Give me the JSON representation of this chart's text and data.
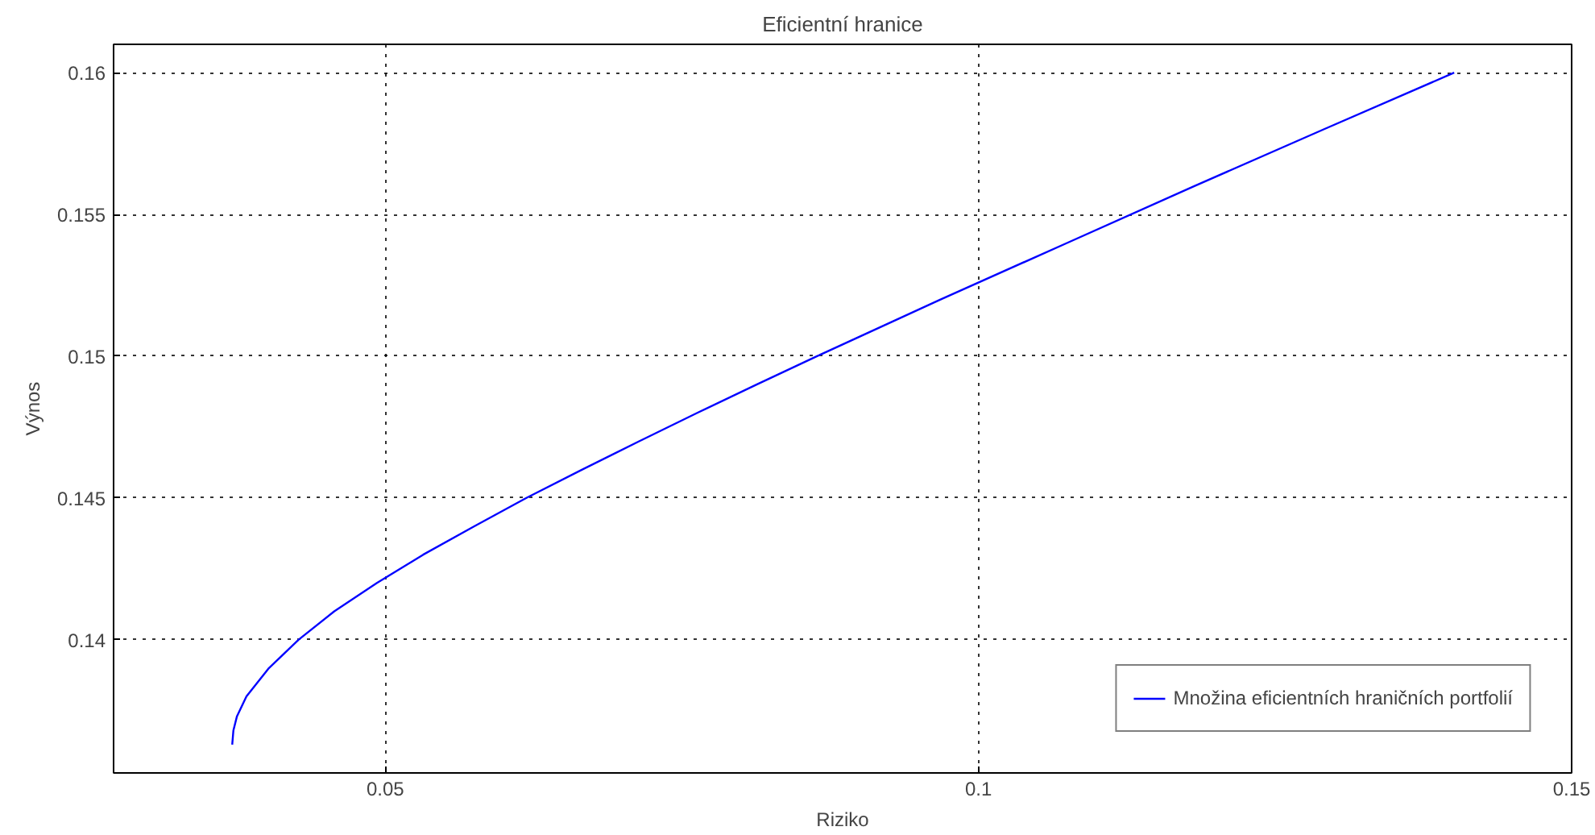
{
  "chart_data": {
    "type": "line",
    "title": "Eficientní hranice",
    "xlabel": "Riziko",
    "ylabel": "Výnos",
    "xlim": [
      0.0271,
      0.15
    ],
    "ylim": [
      0.1353,
      0.161
    ],
    "xticks": [
      0.05,
      0.1,
      0.15
    ],
    "yticks": [
      0.14,
      0.145,
      0.15,
      0.155,
      0.16
    ],
    "grid": true,
    "legend": "bottom right",
    "line_style": "solid",
    "series": [
      {
        "name": "Množina eficientních hraničních portfolií",
        "color": "#0000ff",
        "x": [
          0.0371,
          0.0372,
          0.0375,
          0.0383,
          0.0402,
          0.0427,
          0.0457,
          0.0493,
          0.0532,
          0.0575,
          0.0619,
          0.0666,
          0.0714,
          0.0763,
          0.0813,
          0.0864,
          0.0968,
          0.1075,
          0.1182,
          0.1291,
          0.1401
        ],
        "values": [
          0.1363,
          0.1368,
          0.1373,
          0.138,
          0.139,
          0.14,
          0.141,
          0.142,
          0.143,
          0.144,
          0.145,
          0.146,
          0.147,
          0.148,
          0.149,
          0.15,
          0.152,
          0.154,
          0.156,
          0.158,
          0.16
        ]
      }
    ]
  }
}
